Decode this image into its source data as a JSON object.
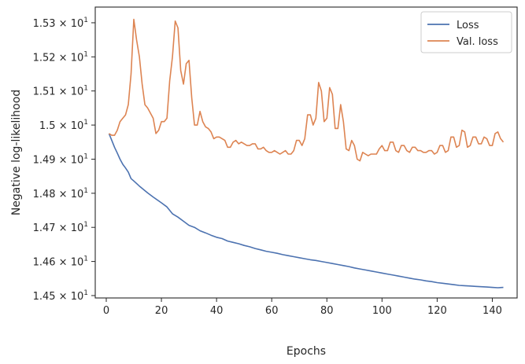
{
  "chart_data": {
    "type": "line",
    "xlabel": "Epochs",
    "ylabel": "Negative log-likelihood",
    "xlim": [
      -4,
      149
    ],
    "ylim": [
      14.493,
      15.346
    ],
    "x_ticks": [
      0,
      20,
      40,
      60,
      80,
      100,
      120,
      140
    ],
    "y_ticks": [
      {
        "value": 14.5,
        "mantissa": "1.45",
        "times": "×",
        "base": "10",
        "exponent": "1"
      },
      {
        "value": 14.6,
        "mantissa": "1.46",
        "times": "×",
        "base": "10",
        "exponent": "1"
      },
      {
        "value": 14.7,
        "mantissa": "1.47",
        "times": "×",
        "base": "10",
        "exponent": "1"
      },
      {
        "value": 14.8,
        "mantissa": "1.48",
        "times": "×",
        "base": "10",
        "exponent": "1"
      },
      {
        "value": 14.9,
        "mantissa": "1.49",
        "times": "×",
        "base": "10",
        "exponent": "1"
      },
      {
        "value": 15.0,
        "mantissa": "1.5",
        "times": "×",
        "base": "10",
        "exponent": "1"
      },
      {
        "value": 15.1,
        "mantissa": "1.51",
        "times": "×",
        "base": "10",
        "exponent": "1"
      },
      {
        "value": 15.2,
        "mantissa": "1.52",
        "times": "×",
        "base": "10",
        "exponent": "1"
      },
      {
        "value": 15.3,
        "mantissa": "1.53",
        "times": "×",
        "base": "10",
        "exponent": "1"
      }
    ],
    "grid": false,
    "legend_position": "top-right",
    "series": [
      {
        "name": "Loss",
        "color": "#4c72b0",
        "points": [
          [
            1,
            14.975
          ],
          [
            2,
            14.955
          ],
          [
            3,
            14.935
          ],
          [
            4,
            14.918
          ],
          [
            5,
            14.9
          ],
          [
            6,
            14.885
          ],
          [
            7,
            14.874
          ],
          [
            8,
            14.862
          ],
          [
            9,
            14.843
          ],
          [
            10,
            14.836
          ],
          [
            12,
            14.821
          ],
          [
            15,
            14.801
          ],
          [
            17,
            14.789
          ],
          [
            20,
            14.772
          ],
          [
            22,
            14.76
          ],
          [
            24,
            14.74
          ],
          [
            26,
            14.73
          ],
          [
            28,
            14.718
          ],
          [
            30,
            14.706
          ],
          [
            32,
            14.7
          ],
          [
            34,
            14.69
          ],
          [
            36,
            14.684
          ],
          [
            38,
            14.677
          ],
          [
            40,
            14.671
          ],
          [
            42,
            14.667
          ],
          [
            44,
            14.66
          ],
          [
            46,
            14.656
          ],
          [
            48,
            14.652
          ],
          [
            50,
            14.647
          ],
          [
            52,
            14.643
          ],
          [
            54,
            14.638
          ],
          [
            56,
            14.634
          ],
          [
            58,
            14.63
          ],
          [
            60,
            14.627
          ],
          [
            62,
            14.624
          ],
          [
            64,
            14.62
          ],
          [
            66,
            14.617
          ],
          [
            68,
            14.614
          ],
          [
            70,
            14.611
          ],
          [
            72,
            14.608
          ],
          [
            74,
            14.605
          ],
          [
            76,
            14.603
          ],
          [
            78,
            14.6
          ],
          [
            80,
            14.597
          ],
          [
            82,
            14.594
          ],
          [
            84,
            14.591
          ],
          [
            86,
            14.588
          ],
          [
            88,
            14.585
          ],
          [
            90,
            14.581
          ],
          [
            92,
            14.578
          ],
          [
            94,
            14.575
          ],
          [
            96,
            14.572
          ],
          [
            98,
            14.569
          ],
          [
            100,
            14.566
          ],
          [
            102,
            14.563
          ],
          [
            104,
            14.56
          ],
          [
            106,
            14.557
          ],
          [
            108,
            14.554
          ],
          [
            110,
            14.551
          ],
          [
            112,
            14.548
          ],
          [
            114,
            14.546
          ],
          [
            116,
            14.543
          ],
          [
            118,
            14.541
          ],
          [
            120,
            14.538
          ],
          [
            122,
            14.536
          ],
          [
            124,
            14.534
          ],
          [
            126,
            14.532
          ],
          [
            128,
            14.53
          ],
          [
            130,
            14.529
          ],
          [
            132,
            14.528
          ],
          [
            134,
            14.527
          ],
          [
            136,
            14.526
          ],
          [
            138,
            14.525
          ],
          [
            140,
            14.524
          ],
          [
            142,
            14.523
          ],
          [
            144,
            14.524
          ]
        ]
      },
      {
        "name": "Val. loss",
        "color": "#dd8452",
        "points": [
          [
            1,
            14.975
          ],
          [
            2,
            14.97
          ],
          [
            3,
            14.97
          ],
          [
            4,
            14.985
          ],
          [
            5,
            15.01
          ],
          [
            6,
            15.02
          ],
          [
            7,
            15.03
          ],
          [
            8,
            15.06
          ],
          [
            9,
            15.15
          ],
          [
            10,
            15.31
          ],
          [
            11,
            15.25
          ],
          [
            12,
            15.2
          ],
          [
            13,
            15.12
          ],
          [
            14,
            15.06
          ],
          [
            15,
            15.05
          ],
          [
            16,
            15.035
          ],
          [
            17,
            15.02
          ],
          [
            18,
            14.975
          ],
          [
            19,
            14.985
          ],
          [
            20,
            15.01
          ],
          [
            21,
            15.01
          ],
          [
            22,
            15.02
          ],
          [
            23,
            15.13
          ],
          [
            24,
            15.2
          ],
          [
            25,
            15.305
          ],
          [
            26,
            15.285
          ],
          [
            27,
            15.16
          ],
          [
            28,
            15.12
          ],
          [
            29,
            15.18
          ],
          [
            30,
            15.19
          ],
          [
            31,
            15.08
          ],
          [
            32,
            15.0
          ],
          [
            33,
            15.0
          ],
          [
            34,
            15.04
          ],
          [
            35,
            15.01
          ],
          [
            36,
            14.995
          ],
          [
            37,
            14.99
          ],
          [
            38,
            14.98
          ],
          [
            39,
            14.96
          ],
          [
            40,
            14.965
          ],
          [
            41,
            14.965
          ],
          [
            42,
            14.96
          ],
          [
            43,
            14.955
          ],
          [
            44,
            14.935
          ],
          [
            45,
            14.935
          ],
          [
            46,
            14.95
          ],
          [
            47,
            14.955
          ],
          [
            48,
            14.945
          ],
          [
            49,
            14.95
          ],
          [
            50,
            14.945
          ],
          [
            51,
            14.94
          ],
          [
            52,
            14.94
          ],
          [
            53,
            14.945
          ],
          [
            54,
            14.945
          ],
          [
            55,
            14.93
          ],
          [
            56,
            14.93
          ],
          [
            57,
            14.935
          ],
          [
            58,
            14.925
          ],
          [
            59,
            14.92
          ],
          [
            60,
            14.92
          ],
          [
            61,
            14.925
          ],
          [
            62,
            14.92
          ],
          [
            63,
            14.915
          ],
          [
            64,
            14.92
          ],
          [
            65,
            14.925
          ],
          [
            66,
            14.915
          ],
          [
            67,
            14.915
          ],
          [
            68,
            14.925
          ],
          [
            69,
            14.955
          ],
          [
            70,
            14.955
          ],
          [
            71,
            14.94
          ],
          [
            72,
            14.96
          ],
          [
            73,
            15.03
          ],
          [
            74,
            15.03
          ],
          [
            75,
            15.0
          ],
          [
            76,
            15.02
          ],
          [
            77,
            15.125
          ],
          [
            78,
            15.1
          ],
          [
            79,
            15.01
          ],
          [
            80,
            15.02
          ],
          [
            81,
            15.11
          ],
          [
            82,
            15.09
          ],
          [
            83,
            14.99
          ],
          [
            84,
            14.99
          ],
          [
            85,
            15.06
          ],
          [
            86,
            15.01
          ],
          [
            87,
            14.93
          ],
          [
            88,
            14.925
          ],
          [
            89,
            14.955
          ],
          [
            90,
            14.94
          ],
          [
            91,
            14.9
          ],
          [
            92,
            14.895
          ],
          [
            93,
            14.92
          ],
          [
            94,
            14.915
          ],
          [
            95,
            14.91
          ],
          [
            96,
            14.915
          ],
          [
            97,
            14.915
          ],
          [
            98,
            14.915
          ],
          [
            99,
            14.93
          ],
          [
            100,
            14.94
          ],
          [
            101,
            14.925
          ],
          [
            102,
            14.925
          ],
          [
            103,
            14.95
          ],
          [
            104,
            14.95
          ],
          [
            105,
            14.925
          ],
          [
            106,
            14.92
          ],
          [
            107,
            14.94
          ],
          [
            108,
            14.94
          ],
          [
            109,
            14.925
          ],
          [
            110,
            14.92
          ],
          [
            111,
            14.935
          ],
          [
            112,
            14.935
          ],
          [
            113,
            14.925
          ],
          [
            114,
            14.925
          ],
          [
            115,
            14.92
          ],
          [
            116,
            14.92
          ],
          [
            117,
            14.925
          ],
          [
            118,
            14.925
          ],
          [
            119,
            14.915
          ],
          [
            120,
            14.92
          ],
          [
            121,
            14.94
          ],
          [
            122,
            14.94
          ],
          [
            123,
            14.92
          ],
          [
            124,
            14.925
          ],
          [
            125,
            14.965
          ],
          [
            126,
            14.965
          ],
          [
            127,
            14.935
          ],
          [
            128,
            14.94
          ],
          [
            129,
            14.985
          ],
          [
            130,
            14.98
          ],
          [
            131,
            14.935
          ],
          [
            132,
            14.94
          ],
          [
            133,
            14.965
          ],
          [
            134,
            14.965
          ],
          [
            135,
            14.945
          ],
          [
            136,
            14.945
          ],
          [
            137,
            14.965
          ],
          [
            138,
            14.96
          ],
          [
            139,
            14.94
          ],
          [
            140,
            14.94
          ],
          [
            141,
            14.975
          ],
          [
            142,
            14.98
          ],
          [
            143,
            14.96
          ],
          [
            144,
            14.95
          ]
        ]
      }
    ]
  }
}
